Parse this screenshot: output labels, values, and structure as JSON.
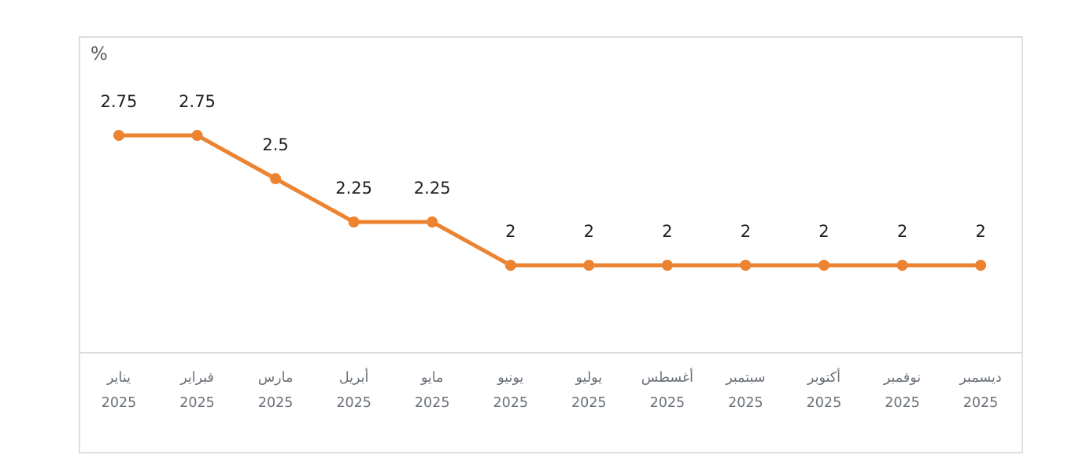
{
  "chart": {
    "unit_label": "%"
  },
  "chart_data": {
    "type": "line",
    "title": "",
    "ylabel": "%",
    "xlabel": "",
    "categories": [
      "يناير",
      "فبراير",
      "مارس",
      "أبريل",
      "مايو",
      "يونيو",
      "يوليو",
      "أغسطس",
      "سبتمبر",
      "أكتوبر",
      "نوفمبر",
      "ديسمبر"
    ],
    "category_year": "2025",
    "series": [
      {
        "name": "rate-percent",
        "values": [
          2.75,
          2.75,
          2.5,
          2.25,
          2.25,
          2,
          2,
          2,
          2,
          2,
          2,
          2
        ],
        "data_labels": [
          "2.75",
          "2.75",
          "2.5",
          "2.25",
          "2.25",
          "2",
          "2",
          "2",
          "2",
          "2",
          "2",
          "2"
        ]
      }
    ],
    "ylim": [
      1.5,
      3.3
    ],
    "grid": false,
    "legend": false,
    "colors": {
      "line": "#EC8331",
      "marker": "#EC8331",
      "data_label": "#1f1f1f",
      "axis_label": "#6a7077",
      "axis_line": "#d9d9d9",
      "card_border": "#dedede",
      "background": "#ffffff"
    }
  }
}
